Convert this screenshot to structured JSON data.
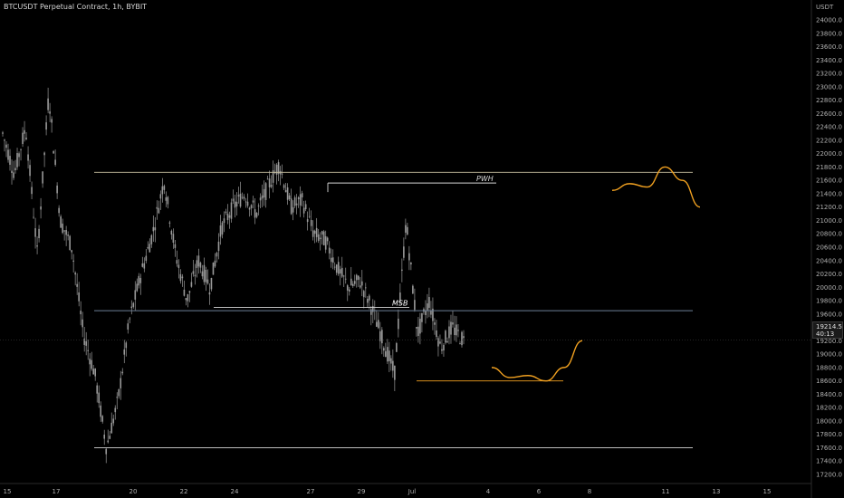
{
  "header": {
    "title": "BTCUSDT Perpetual Contract, 1h, BYBIT"
  },
  "colors": {
    "background": "#000000",
    "candles": "#9a9a9a",
    "level_lines": "#c8c0a0",
    "msb_line": "#6c7f96",
    "projection": "#f0a020",
    "axis_text": "#b0b0b0"
  },
  "last_price": {
    "value": "19214.5",
    "countdown": "40:13"
  },
  "chart_data": {
    "type": "candlestick",
    "title": "BTCUSDT Perpetual Contract, 1h, BYBIT",
    "currency_label": "USDT",
    "x_ticks": [
      "15",
      "17",
      "20",
      "22",
      "24",
      "27",
      "29",
      "Jul",
      "4",
      "6",
      "8",
      "11",
      "13",
      "15"
    ],
    "y_ticks": [
      17200,
      17400,
      17600,
      17800,
      18000,
      18200,
      18400,
      18600,
      18800,
      19000,
      19200,
      19400,
      19600,
      19800,
      20000,
      20200,
      20400,
      20600,
      20800,
      21000,
      21200,
      21400,
      21600,
      21800,
      22000,
      22200,
      22400,
      22600,
      22800,
      23000,
      23200,
      23400,
      23600,
      23800,
      24000
    ],
    "y_range": [
      17100,
      24200
    ],
    "price_path": [
      [
        "15",
        22300
      ],
      [
        "15",
        21700
      ],
      [
        "16",
        22400
      ],
      [
        "16",
        20500
      ],
      [
        "17",
        22900
      ],
      [
        "17",
        21000
      ],
      [
        "18",
        20600
      ],
      [
        "18",
        19300
      ],
      [
        "19",
        18700
      ],
      [
        "19",
        17600
      ],
      [
        "19",
        18300
      ],
      [
        "20",
        19500
      ],
      [
        "20",
        20200
      ],
      [
        "21",
        20800
      ],
      [
        "21",
        21600
      ],
      [
        "22",
        20500
      ],
      [
        "22",
        19800
      ],
      [
        "23",
        20400
      ],
      [
        "23",
        20000
      ],
      [
        "24",
        20900
      ],
      [
        "24",
        21200
      ],
      [
        "25",
        21400
      ],
      [
        "25",
        21100
      ],
      [
        "26",
        21500
      ],
      [
        "26",
        21850
      ],
      [
        "27",
        21200
      ],
      [
        "27",
        21300
      ],
      [
        "28",
        20800
      ],
      [
        "28",
        20700
      ],
      [
        "29",
        20300
      ],
      [
        "29",
        20000
      ],
      [
        "30",
        20100
      ],
      [
        "30",
        19700
      ],
      [
        "30",
        19200
      ],
      [
        "Jul",
        18700
      ],
      [
        "Jul",
        21000
      ],
      [
        "Jul",
        19300
      ],
      [
        "2",
        19800
      ],
      [
        "2",
        19100
      ],
      [
        "3",
        19400
      ],
      [
        "3",
        19200
      ]
    ],
    "annotations": [
      {
        "label": "PWH",
        "price": 21560
      },
      {
        "label": "MSB",
        "price": 19700
      },
      {
        "label": "",
        "price": 21720
      },
      {
        "label": "",
        "price": 19650
      },
      {
        "label": "",
        "price": 18600
      },
      {
        "label": "",
        "price": 17600
      }
    ],
    "projections": [
      {
        "from": "4",
        "to": "8",
        "path": [
          18800,
          18650,
          18680,
          18600,
          18800,
          19200
        ]
      },
      {
        "from": "8",
        "to": "12",
        "path": [
          21450,
          21550,
          21500,
          21800,
          21600,
          21200
        ]
      }
    ]
  }
}
